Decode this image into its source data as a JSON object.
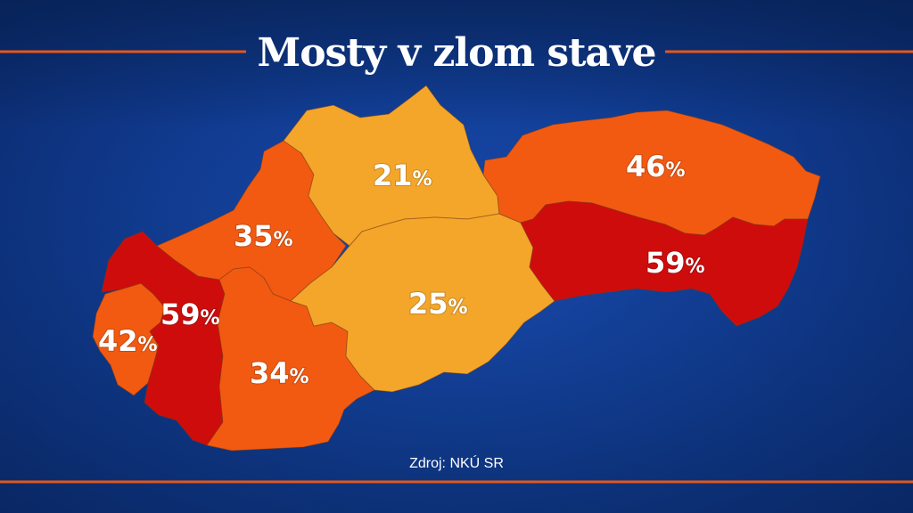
{
  "title": "Mosty v zlom stave",
  "source": "Zdroj: NKÚ SR",
  "colors": {
    "background": "#123f98",
    "accent_line": "#e2571b",
    "light": "#f4a62a",
    "mid": "#f25a12",
    "dark": "#cf0c0c"
  },
  "chart_data": {
    "type": "choropleth",
    "regions": [
      {
        "value": "42",
        "unit": "%",
        "level": "mid"
      },
      {
        "value": "59",
        "unit": "%",
        "level": "dark"
      },
      {
        "value": "35",
        "unit": "%",
        "level": "mid"
      },
      {
        "value": "34",
        "unit": "%",
        "level": "mid"
      },
      {
        "value": "21",
        "unit": "%",
        "level": "light"
      },
      {
        "value": "25",
        "unit": "%",
        "level": "light"
      },
      {
        "value": "46",
        "unit": "%",
        "level": "mid"
      },
      {
        "value": "59",
        "unit": "%",
        "level": "dark"
      }
    ]
  }
}
